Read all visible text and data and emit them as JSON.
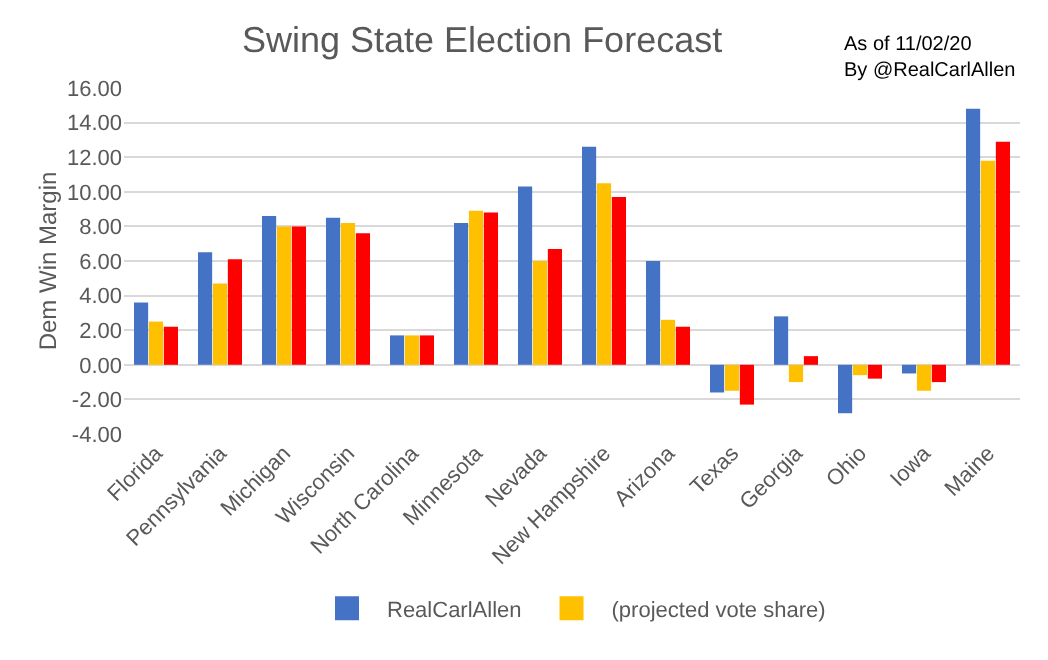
{
  "chart_data": {
    "type": "bar",
    "title": "Swing State Election Forecast",
    "ylabel": "Dem Win Margin",
    "annotations": [
      "As of 11/02/20",
      "By @RealCarlAllen"
    ],
    "categories": [
      "Florida",
      "Pennsylvania",
      "Michigan",
      "Wisconsin",
      "North Carolina",
      "Minnesota",
      "Nevada",
      "New Hampshire",
      "Arizona",
      "Texas",
      "Georgia",
      "Ohio",
      "Iowa",
      "Maine"
    ],
    "series": [
      {
        "name": "RealCarlAllen",
        "color": "#4472c4",
        "values": [
          3.6,
          6.5,
          8.6,
          8.5,
          1.7,
          8.2,
          10.3,
          12.6,
          6.0,
          -1.6,
          2.8,
          -2.8,
          -0.5,
          14.8
        ]
      },
      {
        "name": "(projected vote share)",
        "color": "#ffc000",
        "values": [
          2.5,
          4.7,
          8.0,
          8.2,
          1.7,
          8.9,
          6.0,
          10.5,
          2.6,
          -1.5,
          -1.0,
          -0.6,
          -1.5,
          11.8
        ]
      },
      {
        "color": "#ff0000",
        "values": [
          2.2,
          6.1,
          8.0,
          7.6,
          1.7,
          8.8,
          6.7,
          9.7,
          2.2,
          -2.3,
          0.5,
          -0.8,
          -1.0,
          12.9
        ]
      }
    ],
    "ylim": [
      -4,
      16
    ],
    "yticks": [
      {
        "value": -4,
        "label": "-4.00"
      },
      {
        "value": -2,
        "label": "-2.00"
      },
      {
        "value": 0,
        "label": "0.00"
      },
      {
        "value": 2,
        "label": "2.00"
      },
      {
        "value": 4,
        "label": "4.00"
      },
      {
        "value": 6,
        "label": "6.00"
      },
      {
        "value": 8,
        "label": "8.00"
      },
      {
        "value": 10,
        "label": "10.00"
      },
      {
        "value": 12,
        "label": "12.00"
      },
      {
        "value": 14,
        "label": "14.00"
      },
      {
        "value": 16,
        "label": "16.00"
      }
    ],
    "grid": "y",
    "legend": "bottom"
  }
}
